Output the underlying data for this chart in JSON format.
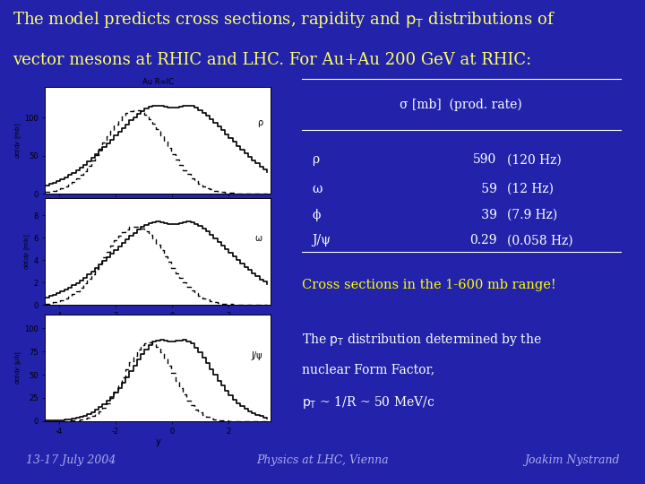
{
  "background_color": "#2222aa",
  "title_color": "#ffff66",
  "title_fontsize": 13,
  "table_header": "σ [mb]  (prod. rate)",
  "table_rows": [
    [
      "ρ",
      "590",
      "(120 Hz)"
    ],
    [
      "ω",
      " 59",
      "(12 Hz)"
    ],
    [
      "ϕ",
      " 39",
      "(7.9 Hz)"
    ],
    [
      "J/ψ",
      "0.29",
      "(0.058 Hz)"
    ]
  ],
  "highlight_text": "Cross sections in the 1-600 mb range!",
  "highlight_color": "#ffff00",
  "body_color": "#ffffff",
  "footer_left": "13-17 July 2004",
  "footer_center": "Physics at LHC, Vienna",
  "footer_right": "Joakim Nystrand",
  "footer_color": "#aaaaee",
  "panel_label_rho": "ρ",
  "panel_label_omega": "ω",
  "panel_label_jpsi": "J/ψ",
  "plot_xlabel": "y",
  "plot_title": "Au R=IC"
}
